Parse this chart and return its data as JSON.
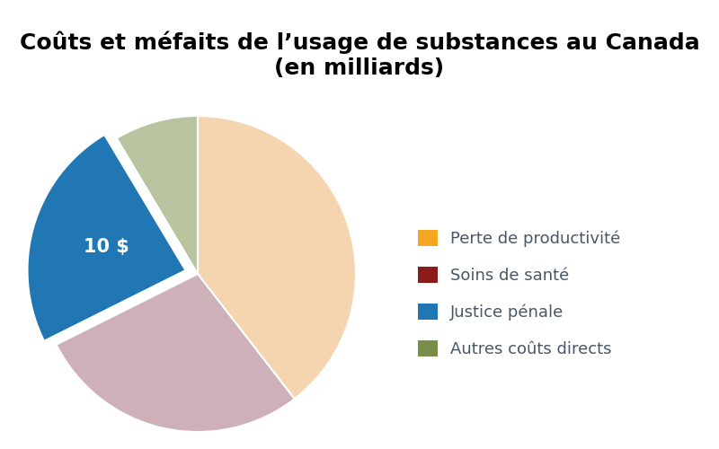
{
  "title": "Coûts et méfaits de l’usage de substances au Canada\n(en milliards)",
  "slices": [
    {
      "label": "Perte de productivité",
      "value": 16.6,
      "pie_color": "#F5D5B0",
      "legend_color": "#F5A623"
    },
    {
      "label": "Soins de santé",
      "value": 11.8,
      "pie_color": "#CDB0B8",
      "legend_color": "#8B1A1A"
    },
    {
      "label": "Justice pénale",
      "value": 10.0,
      "pie_color": "#2077B4",
      "legend_color": "#2077B4"
    },
    {
      "label": "Autres coûts directs",
      "value": 3.6,
      "pie_color": "#B8C4A0",
      "legend_color": "#7A8C4A"
    }
  ],
  "explode": [
    0,
    0,
    0.08,
    0
  ],
  "label_text": "10 $",
  "label_color": "#ffffff",
  "label_fontsize": 15,
  "title_fontsize": 18,
  "legend_fontsize": 13,
  "legend_text_color": "#4A5568",
  "background_color": "#ffffff",
  "startangle": 90
}
